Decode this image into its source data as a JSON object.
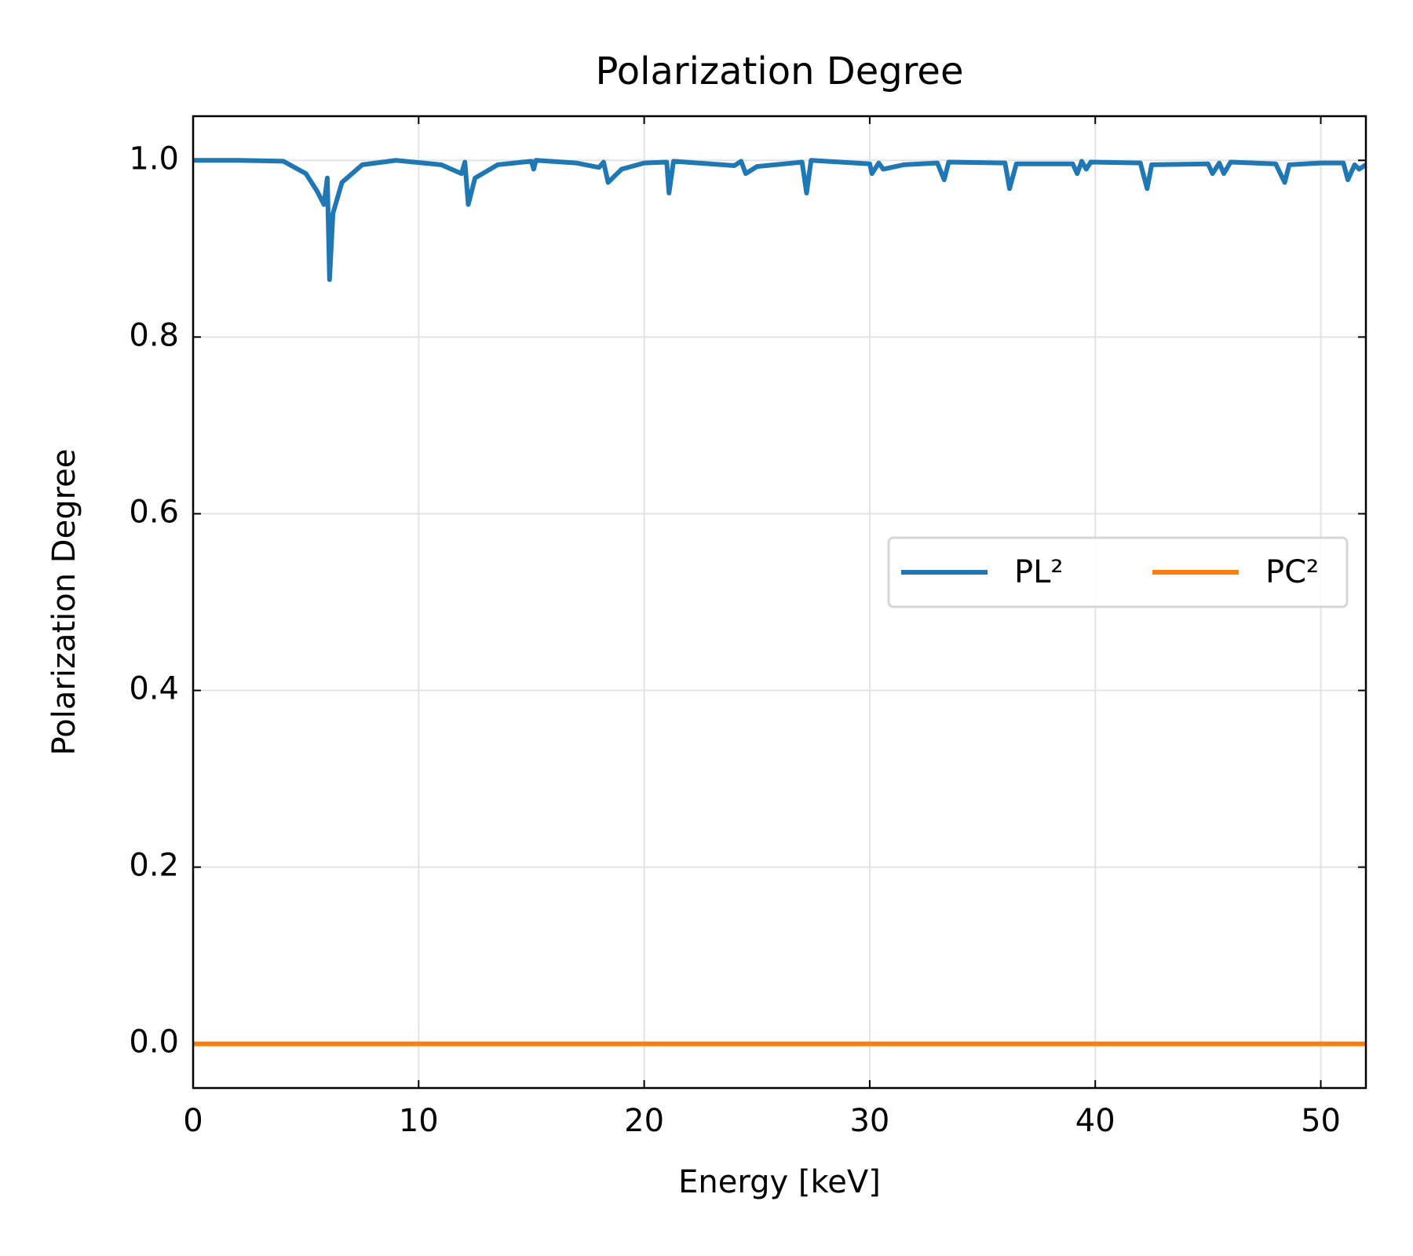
{
  "chart_data": {
    "type": "line",
    "title": "Polarization Degree",
    "xlabel": "Energy [keV]",
    "ylabel": "Polarization Degree",
    "xlim": [
      0,
      52
    ],
    "ylim": [
      -0.05,
      1.05
    ],
    "xticks": [
      0,
      10,
      20,
      30,
      40,
      50
    ],
    "yticks": [
      {
        "value": 0,
        "label": "0.0"
      },
      0.2,
      0.4,
      0.6,
      0.8,
      {
        "value": 1,
        "label": "1.0"
      }
    ],
    "grid": true,
    "legend": "center right",
    "series": [
      {
        "name": "PL²",
        "color": "#1f77b4",
        "x": [
          0,
          2,
          4,
          5,
          5.5,
          5.8,
          5.95,
          6.05,
          6.2,
          6.6,
          7.5,
          9,
          11,
          11.9,
          12.05,
          12.2,
          12.5,
          13.5,
          15,
          15.1,
          15.2,
          17,
          18,
          18.2,
          18.4,
          19,
          20,
          21,
          21.1,
          21.3,
          24,
          24.3,
          24.5,
          25,
          27,
          27.2,
          27.4,
          30,
          30.1,
          30.4,
          30.6,
          31.5,
          33,
          33.3,
          33.5,
          36,
          36.2,
          36.5,
          39,
          39.2,
          39.4,
          39.6,
          39.8,
          42,
          42.3,
          42.5,
          45,
          45.2,
          45.5,
          45.7,
          46,
          48,
          48.4,
          48.6,
          50,
          51,
          51.2,
          51.5,
          51.7,
          52
        ],
        "values": [
          1.0,
          1.0,
          0.999,
          0.985,
          0.965,
          0.95,
          0.98,
          0.865,
          0.94,
          0.975,
          0.995,
          1.0,
          0.995,
          0.985,
          0.998,
          0.95,
          0.98,
          0.995,
          0.999,
          0.99,
          1.0,
          0.997,
          0.992,
          0.998,
          0.975,
          0.99,
          0.997,
          0.998,
          0.963,
          0.999,
          0.994,
          0.999,
          0.985,
          0.993,
          0.998,
          0.963,
          1.0,
          0.996,
          0.985,
          0.997,
          0.99,
          0.995,
          0.997,
          0.978,
          0.998,
          0.997,
          0.968,
          0.996,
          0.996,
          0.985,
          0.999,
          0.99,
          0.998,
          0.997,
          0.968,
          0.995,
          0.996,
          0.985,
          0.997,
          0.985,
          0.998,
          0.996,
          0.975,
          0.995,
          0.997,
          0.997,
          0.978,
          0.995,
          0.99,
          0.995
        ]
      },
      {
        "name": "PC²",
        "color": "#ff7f0e",
        "x": [
          0,
          52
        ],
        "values": [
          0,
          0
        ]
      }
    ]
  }
}
